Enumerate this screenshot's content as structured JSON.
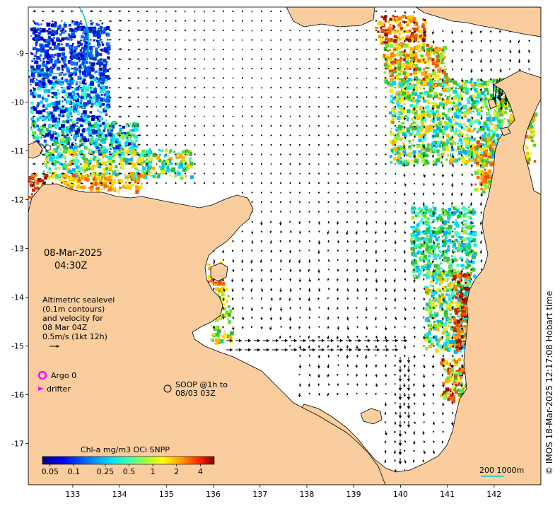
{
  "map": {
    "lon_ticks": [
      "133",
      "134",
      "135",
      "136",
      "137",
      "138",
      "139",
      "140",
      "141",
      "142"
    ],
    "lat_ticks": [
      "-9",
      "-10",
      "-11",
      "-12",
      "-13",
      "-14",
      "-15",
      "-16",
      "-17"
    ],
    "lon_range": [
      132.05,
      143.0
    ],
    "lat_range": [
      -17.85,
      -8.05
    ],
    "date": "08-Mar-2025",
    "time": "04:30Z",
    "altimetry_legend": [
      "Altimetric sealevel",
      "(0.1m contours)",
      "and velocity for",
      "08 Mar 04Z",
      "0.5m/s (1kt 12h)"
    ],
    "argo_label": "Argo 0",
    "drifter_label": "drifter",
    "soop_label_1": "SOOP @1h to",
    "soop_label_2": "08/03 03Z",
    "colorbar_title": "Chl-a mg/m3 OCi SNPP",
    "colorbar_ticks": [
      "0.05",
      "0.1",
      "0.25",
      "0.5",
      "1",
      "2",
      "4"
    ],
    "scale_label": "200  1000m",
    "credit": "© IMOS 18-Mar-2025 12:17:08 Hobart time",
    "colors": {
      "land": "#f9cd9e",
      "sea": "#ffffff",
      "argo": "#ff00ff",
      "drifter": "#ff00ff",
      "isobath_200": "#00cccc"
    }
  }
}
